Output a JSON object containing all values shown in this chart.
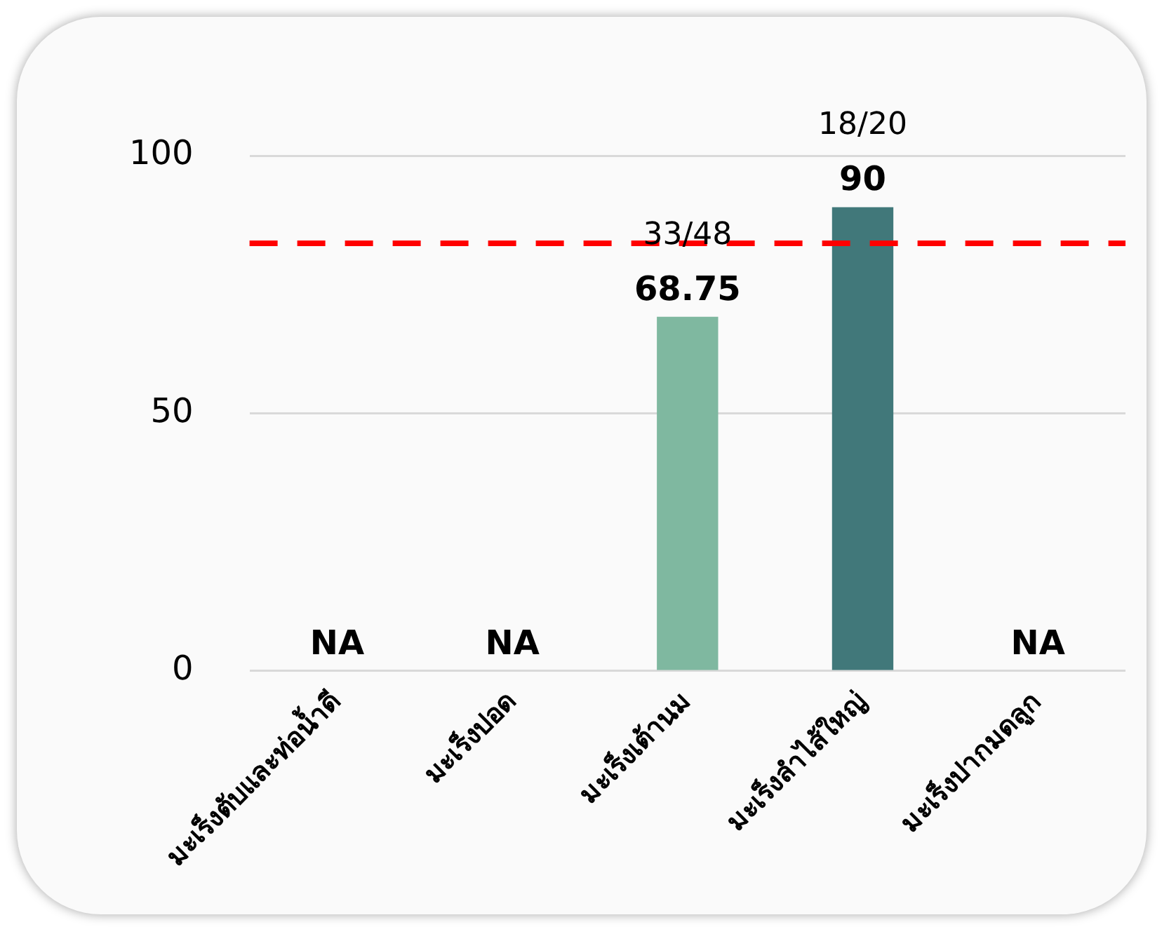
{
  "chart_data": {
    "type": "bar",
    "categories": [
      "มะเร็งตับและท่อน้ำดี",
      "มะเร็งปอด",
      "มะเร็งเต้านม",
      "มะเร็งลำไส้ใหญ่",
      "มะเร็งปากมดลูก"
    ],
    "values": [
      null,
      null,
      68.75,
      90,
      null
    ],
    "colors": [
      null,
      null,
      "#7fb8a0",
      "#41787a",
      null
    ],
    "value_labels": [
      "NA",
      "NA",
      "68.75",
      "90",
      "NA"
    ],
    "annotations": [
      {
        "text": "33/48",
        "x": "มะเร็งเต้านม",
        "y": 68.75
      },
      {
        "text": "18/20",
        "x": "มะเร็งลำไส้ใหญ่",
        "y": 90
      }
    ],
    "ref_lines": [
      {
        "axis": "y",
        "value": 83,
        "color": "#ff0000",
        "line_style": "dashed"
      }
    ],
    "ylim": [
      0,
      100
    ],
    "yticks": [
      0,
      50,
      100
    ],
    "grid": "y",
    "legend": false
  }
}
